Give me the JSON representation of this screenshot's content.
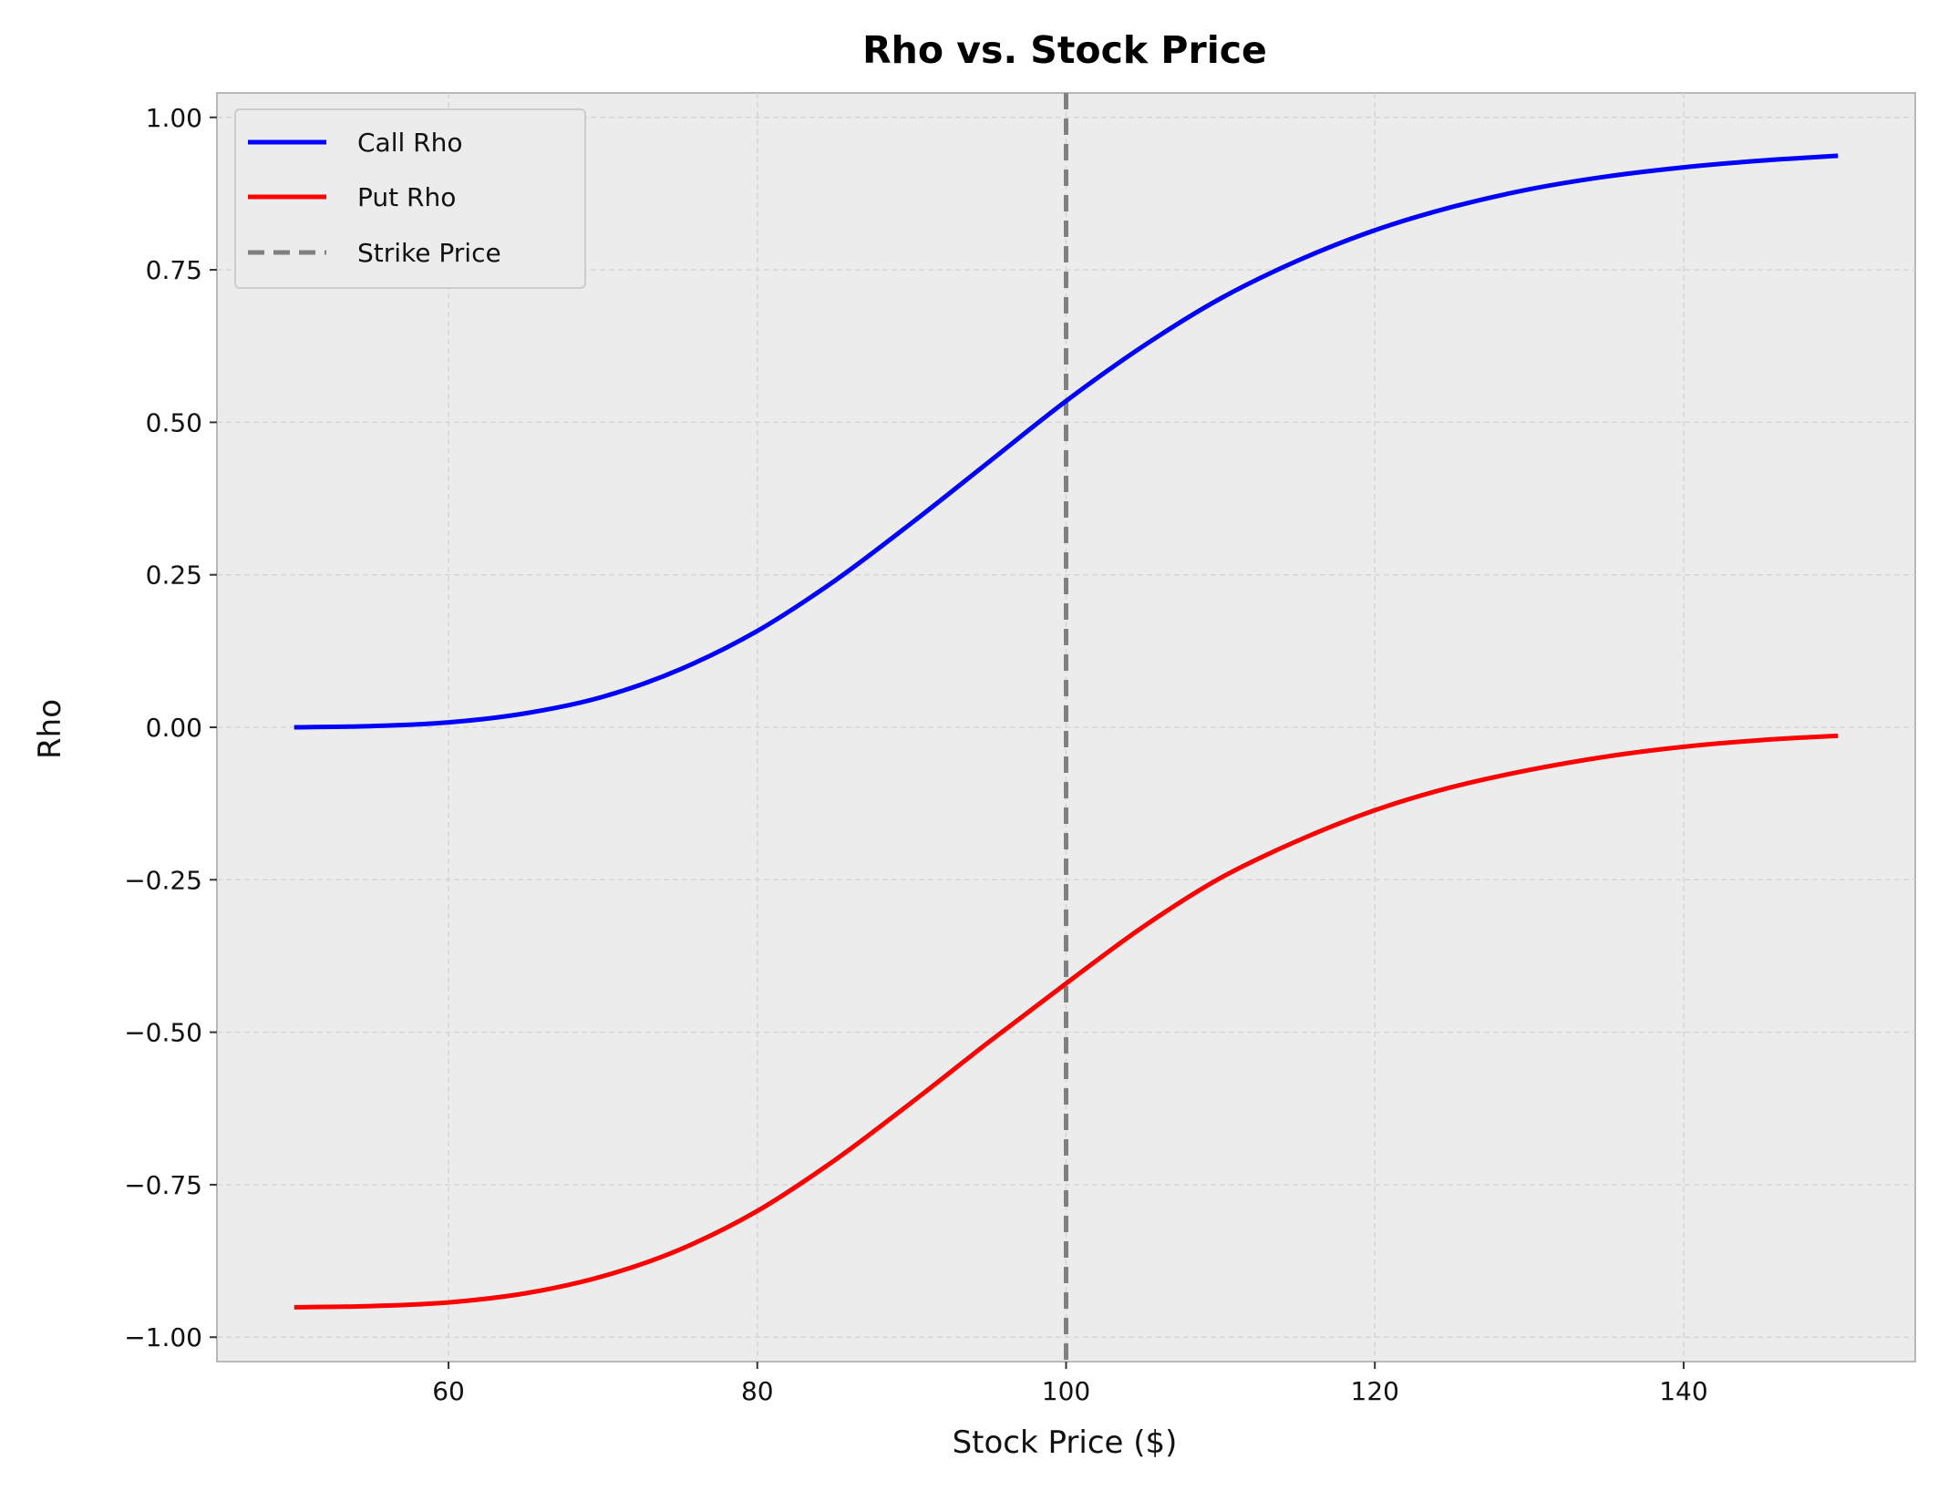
{
  "chart_data": {
    "type": "line",
    "title": "Rho vs. Stock Price",
    "xlabel": "Stock Price ($)",
    "ylabel": "Rho",
    "xlim": [
      45,
      155
    ],
    "ylim": [
      -1.04,
      1.04
    ],
    "xticks": [
      60,
      80,
      100,
      120,
      140
    ],
    "xtick_labels": [
      "60",
      "80",
      "100",
      "120",
      "140"
    ],
    "yticks": [
      1.0,
      0.75,
      0.5,
      0.25,
      0.0,
      -0.25,
      -0.5,
      -0.75,
      -1.0
    ],
    "ytick_labels": [
      "1.00",
      "0.75",
      "0.50",
      "0.25",
      "0.00",
      "−0.25",
      "−0.50",
      "−0.75",
      "−1.00"
    ],
    "grid": true,
    "legend_position": "top-left",
    "background_color": "#ececec",
    "series": [
      {
        "name": "Call Rho",
        "color": "#0000ff",
        "style": "solid",
        "x": [
          50,
          55,
          60,
          65,
          70,
          75,
          80,
          85,
          90,
          95,
          100,
          105,
          110,
          115,
          120,
          125,
          130,
          135,
          140,
          145,
          150
        ],
        "y": [
          0.0,
          0.002,
          0.008,
          0.023,
          0.05,
          0.095,
          0.158,
          0.24,
          0.335,
          0.435,
          0.535,
          0.625,
          0.703,
          0.765,
          0.815,
          0.853,
          0.882,
          0.903,
          0.918,
          0.929,
          0.937
        ]
      },
      {
        "name": "Put Rho",
        "color": "#ff0000",
        "style": "solid",
        "x": [
          50,
          55,
          60,
          65,
          70,
          75,
          80,
          85,
          90,
          95,
          100,
          105,
          110,
          115,
          120,
          125,
          130,
          135,
          140,
          145,
          150
        ],
        "y": [
          -0.951,
          -0.949,
          -0.943,
          -0.928,
          -0.9,
          -0.856,
          -0.793,
          -0.71,
          -0.615,
          -0.516,
          -0.42,
          -0.327,
          -0.247,
          -0.186,
          -0.136,
          -0.098,
          -0.07,
          -0.048,
          -0.032,
          -0.021,
          -0.014
        ]
      }
    ],
    "vlines": [
      {
        "name": "Strike Price",
        "x": 100,
        "color": "#808080",
        "style": "dashed"
      }
    ]
  }
}
